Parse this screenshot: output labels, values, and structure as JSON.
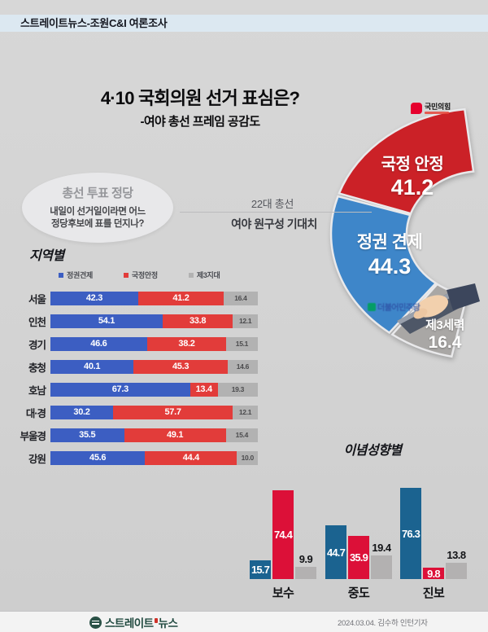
{
  "header": {
    "band_text": "스트레이트뉴스-조원C&I 여론조사"
  },
  "title": {
    "main": "4·10 국회의원 선거 표심은?",
    "sub": "-여야 총선 프레임 공감도"
  },
  "bubble": {
    "title": "총선 투표 정당",
    "question_line1": "내일이 선거일이라면 어느",
    "question_line2": "정당후보에 표를 던지나?"
  },
  "context": {
    "election": "22대 총선",
    "expectation": "여야 원구성 기대치"
  },
  "party_logos": {
    "ppp": "국민의힘",
    "dp": "더불어민주당"
  },
  "colors": {
    "donut_red": "#cb2127",
    "donut_blue": "#3e86c9",
    "donut_gray": "#a9a7a5",
    "region_blue": "#3c5ec2",
    "region_red": "#e23c3a",
    "region_gray": "#b2b2b2",
    "ideo_blue": "#1b6390",
    "ideo_red": "#dc1038",
    "ideo_gray": "#b3b1b1",
    "band": "#dce8f1",
    "ppp_red": "#e6002d",
    "dp_green": "#00a05e"
  },
  "chart_data": [
    {
      "type": "pie",
      "title": "22대 총선 여야 원구성 기대치",
      "labels": [
        "국정 안정",
        "정권 견제",
        "제3세력"
      ],
      "values": [
        41.2,
        44.3,
        16.4
      ],
      "colors": [
        "#cb2127",
        "#3e86c9",
        "#a9a7a5"
      ],
      "legend_position": "none",
      "note": "donut open to the right; segments annotated with party logos 국민의힘 / 더불어민주당"
    },
    {
      "type": "bar",
      "subtype": "horizontal-stacked",
      "title": "지역별",
      "categories": [
        "서울",
        "인천",
        "경기",
        "충청",
        "호남",
        "대·경",
        "부울경",
        "강원"
      ],
      "series": [
        {
          "name": "정권견제",
          "color": "#3c5ec2",
          "values": [
            42.3,
            54.1,
            46.6,
            40.1,
            67.3,
            30.2,
            35.5,
            45.6
          ]
        },
        {
          "name": "국정안정",
          "color": "#e23c3a",
          "values": [
            41.2,
            33.8,
            38.2,
            45.3,
            13.4,
            57.7,
            49.1,
            44.4
          ]
        },
        {
          "name": "제3지대",
          "color": "#b2b2b2",
          "values": [
            16.4,
            12.1,
            15.1,
            14.6,
            19.3,
            12.1,
            15.4,
            10.0
          ]
        }
      ],
      "xlim": [
        0,
        100
      ],
      "grid": false,
      "legend_position": "top"
    },
    {
      "type": "bar",
      "subtype": "grouped-vertical",
      "title": "이념성향별",
      "categories": [
        "보수",
        "중도",
        "진보"
      ],
      "series": [
        {
          "name": "정권견제",
          "color": "#1b6390",
          "values": [
            15.7,
            44.7,
            76.3
          ]
        },
        {
          "name": "국정안정",
          "color": "#dc1038",
          "values": [
            74.4,
            35.9,
            9.8
          ]
        },
        {
          "name": "제3지대",
          "color": "#b3b1b1",
          "values": [
            9.9,
            19.4,
            13.8
          ]
        }
      ],
      "ylim": [
        0,
        80
      ],
      "grid": false,
      "legend_position": "none"
    }
  ],
  "footer": {
    "logo_part1": "스트레이트",
    "logo_part2": "뉴스",
    "credit": "2024.03.04. 김수하 인턴기자"
  }
}
